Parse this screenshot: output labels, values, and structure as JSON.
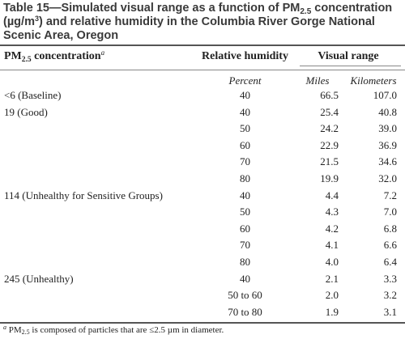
{
  "title": {
    "part1": "Table 15—Simulated visual range as a function of PM",
    "part1_sub": "2.5",
    "part2": " concentration (µg/m",
    "part2_sup": "3",
    "part3": ") and relative humidity in the Columbia River Gorge National Scenic Area, Oregon"
  },
  "headers": {
    "concentration_prefix": "PM",
    "concentration_sub": "2.5",
    "concentration_suffix": " concentration",
    "concentration_note": "a",
    "relative_humidity": "Relative humidity",
    "visual_range": "Visual range"
  },
  "subheaders": {
    "relative_humidity_unit": "Percent",
    "miles": "Miles",
    "kilometers": "Kilometers"
  },
  "rows": [
    {
      "concentration": "<6 (Baseline)",
      "rh": "40",
      "miles": "66.5",
      "km": "107.0"
    },
    {
      "concentration": "19 (Good)",
      "rh": "40",
      "miles": "25.4",
      "km": "40.8"
    },
    {
      "concentration": "",
      "rh": "50",
      "miles": "24.2",
      "km": "39.0"
    },
    {
      "concentration": "",
      "rh": "60",
      "miles": "22.9",
      "km": "36.9"
    },
    {
      "concentration": "",
      "rh": "70",
      "miles": "21.5",
      "km": "34.6"
    },
    {
      "concentration": "",
      "rh": "80",
      "miles": "19.9",
      "km": "32.0"
    },
    {
      "concentration": "114 (Unhealthy for Sensitive Groups)",
      "rh": "40",
      "miles": "4.4",
      "km": "7.2"
    },
    {
      "concentration": "",
      "rh": "50",
      "miles": "4.3",
      "km": "7.0"
    },
    {
      "concentration": "",
      "rh": "60",
      "miles": "4.2",
      "km": "6.8"
    },
    {
      "concentration": "",
      "rh": "70",
      "miles": "4.1",
      "km": "6.6"
    },
    {
      "concentration": "",
      "rh": "80",
      "miles": "4.0",
      "km": "6.4"
    },
    {
      "concentration": "245 (Unhealthy)",
      "rh": "40",
      "miles": "2.1",
      "km": "3.3"
    },
    {
      "concentration": "",
      "rh": "50 to 60",
      "miles": "2.0",
      "km": "3.2"
    },
    {
      "concentration": "",
      "rh": "70 to 80",
      "miles": "1.9",
      "km": "3.1"
    }
  ],
  "footnote": {
    "marker": "a",
    "prefix": " PM",
    "sub": "2.5",
    "text": " is composed of particles that are ≤2.5 µm in diameter."
  }
}
